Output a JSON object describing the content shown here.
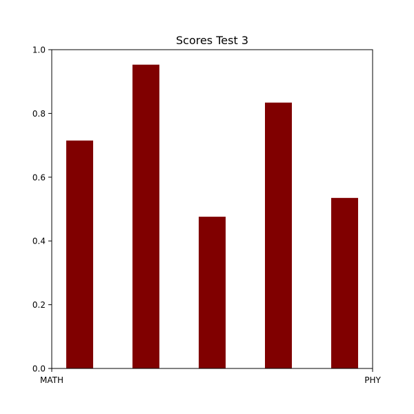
{
  "chart_data": {
    "type": "bar",
    "title": "Scores Test 3",
    "values": [
      0.715,
      0.953,
      0.476,
      0.834,
      0.535
    ],
    "ylim": [
      0.0,
      1.0
    ],
    "yticks": [
      "0.0",
      "0.2",
      "0.4",
      "0.6",
      "0.8",
      "1.0"
    ],
    "xtick_labels": [
      "MATH",
      "PHY"
    ],
    "bar_color": "#800000",
    "grid": false,
    "legend": "none"
  }
}
